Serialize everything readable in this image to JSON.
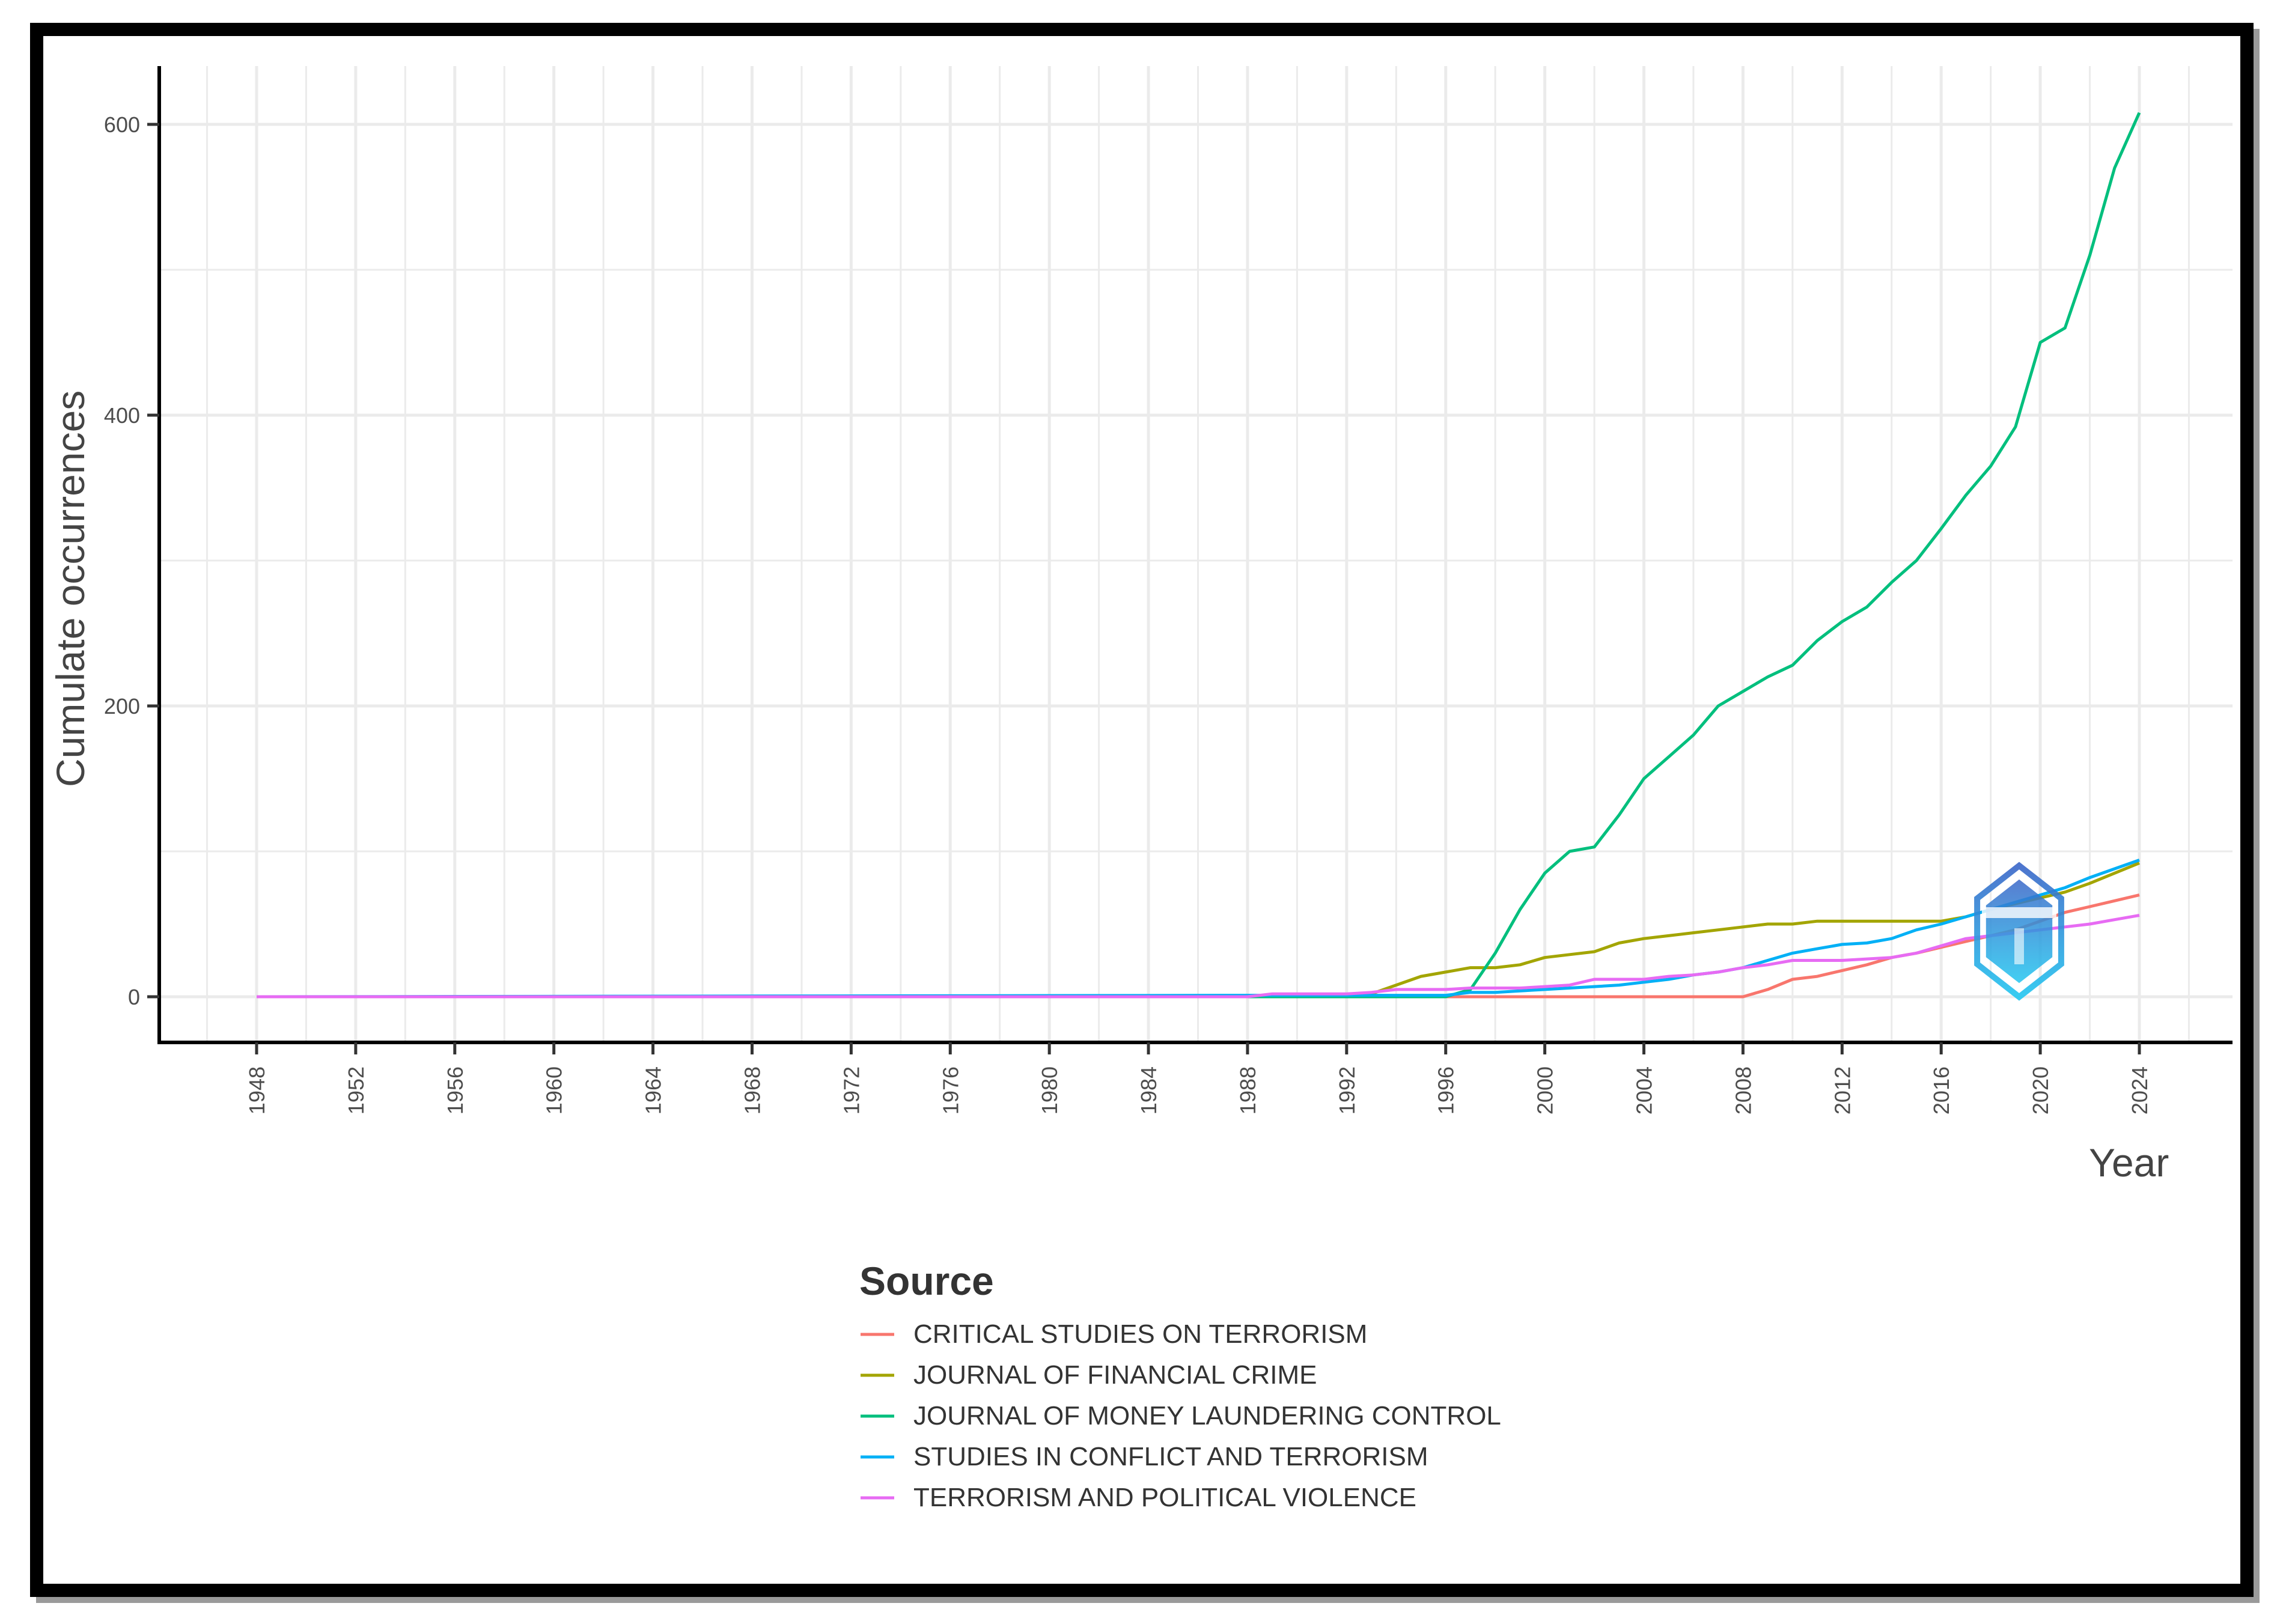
{
  "chart_data": {
    "type": "line",
    "title": "",
    "xlabel": "Year",
    "ylabel": "Cumulate occurrences",
    "xlim": [
      1944,
      2027
    ],
    "ylim": [
      -30,
      640
    ],
    "grid": true,
    "legend_position": "bottom",
    "legend_title": "Source",
    "x_ticks": [
      1948,
      1952,
      1956,
      1960,
      1964,
      1968,
      1972,
      1976,
      1980,
      1984,
      1988,
      1992,
      1996,
      2000,
      2004,
      2008,
      2012,
      2016,
      2020,
      2024
    ],
    "y_ticks": [
      0,
      200,
      400,
      600
    ],
    "x": [
      1948,
      1988,
      1989,
      1990,
      1991,
      1992,
      1993,
      1994,
      1995,
      1996,
      1997,
      1998,
      1999,
      2000,
      2001,
      2002,
      2003,
      2004,
      2005,
      2006,
      2007,
      2008,
      2009,
      2010,
      2011,
      2012,
      2013,
      2014,
      2015,
      2016,
      2017,
      2018,
      2019,
      2020,
      2021,
      2022,
      2023,
      2024
    ],
    "series": [
      {
        "name": "CRITICAL STUDIES ON TERRORISM",
        "color": "#F8766D",
        "values": [
          0,
          0,
          0,
          0,
          0,
          0,
          0,
          0,
          0,
          0,
          0,
          0,
          0,
          0,
          0,
          0,
          0,
          0,
          0,
          0,
          0,
          0,
          5,
          12,
          14,
          18,
          22,
          27,
          30,
          34,
          38,
          42,
          46,
          52,
          58,
          62,
          66,
          70
        ]
      },
      {
        "name": "JOURNAL OF FINANCIAL CRIME",
        "color": "#A3A500",
        "values": [
          0,
          0,
          0,
          0,
          0,
          0,
          2,
          8,
          14,
          17,
          20,
          20,
          22,
          27,
          29,
          31,
          37,
          40,
          42,
          44,
          46,
          48,
          50,
          50,
          52,
          52,
          52,
          52,
          52,
          52,
          55,
          60,
          64,
          68,
          72,
          78,
          85,
          92
        ]
      },
      {
        "name": "JOURNAL OF MONEY LAUNDERING CONTROL",
        "color": "#00BF7D",
        "values": [
          0,
          0,
          0,
          0,
          0,
          0,
          0,
          0,
          0,
          0,
          5,
          30,
          60,
          85,
          100,
          103,
          125,
          150,
          165,
          180,
          200,
          210,
          220,
          228,
          245,
          258,
          268,
          285,
          300,
          322,
          345,
          365,
          392,
          450,
          460,
          510,
          570,
          608
        ]
      },
      {
        "name": "STUDIES IN CONFLICT AND TERRORISM",
        "color": "#00B0F6",
        "values": [
          0,
          1,
          1,
          1,
          1,
          1,
          1,
          1,
          1,
          1,
          3,
          3,
          4,
          5,
          6,
          7,
          8,
          10,
          12,
          15,
          17,
          20,
          25,
          30,
          33,
          36,
          37,
          40,
          46,
          50,
          55,
          60,
          65,
          70,
          75,
          82,
          88,
          94
        ]
      },
      {
        "name": "TERRORISM AND POLITICAL VIOLENCE",
        "color": "#E76BF3",
        "values": [
          0,
          0,
          2,
          2,
          2,
          2,
          3,
          5,
          5,
          5,
          6,
          6,
          6,
          7,
          8,
          12,
          12,
          12,
          14,
          15,
          17,
          20,
          22,
          25,
          25,
          25,
          26,
          27,
          30,
          35,
          40,
          42,
          44,
          46,
          48,
          50,
          53,
          56
        ]
      }
    ]
  },
  "legend": {
    "title": "Source",
    "items": [
      {
        "label": "CRITICAL STUDIES ON TERRORISM",
        "color": "#F8766D"
      },
      {
        "label": "JOURNAL OF FINANCIAL CRIME",
        "color": "#A3A500"
      },
      {
        "label": "JOURNAL OF MONEY LAUNDERING CONTROL",
        "color": "#00BF7D"
      },
      {
        "label": "STUDIES IN CONFLICT AND TERRORISM",
        "color": "#00B0F6"
      },
      {
        "label": "TERRORISM AND POLITICAL VIOLENCE",
        "color": "#E76BF3"
      }
    ]
  },
  "axes": {
    "x_title": "Year",
    "y_title": "Cumulate occurrences"
  },
  "watermark": {
    "icon": "hexagon-logo-icon",
    "colors": [
      "#3a66c8",
      "#22c6f0"
    ]
  }
}
